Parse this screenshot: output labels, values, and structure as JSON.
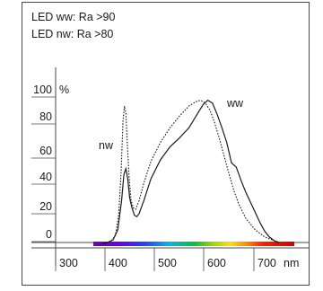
{
  "chart_data": {
    "type": "line",
    "notes": [
      "LED ww: Ra >90",
      "LED nw: Ra >80"
    ],
    "y_unit": "%",
    "x_unit": "nm",
    "xlim": [
      300,
      750
    ],
    "ylim": [
      0,
      100
    ],
    "x_ticks": [
      300,
      400,
      500,
      600,
      700
    ],
    "y_ticks": [
      0,
      20,
      40,
      60,
      80,
      100
    ],
    "series": [
      {
        "name": "ww",
        "style": "solid",
        "color": "#1a1a1a",
        "points": [
          [
            370,
            0
          ],
          [
            380,
            0.5
          ],
          [
            390,
            1.5
          ],
          [
            400,
            3
          ],
          [
            410,
            10
          ],
          [
            418,
            30
          ],
          [
            423,
            48
          ],
          [
            427,
            52
          ],
          [
            431,
            45
          ],
          [
            435,
            32
          ],
          [
            440,
            25
          ],
          [
            445,
            20
          ],
          [
            450,
            19
          ],
          [
            455,
            21
          ],
          [
            465,
            30
          ],
          [
            480,
            45
          ],
          [
            500,
            58
          ],
          [
            520,
            67
          ],
          [
            540,
            73
          ],
          [
            560,
            80
          ],
          [
            575,
            88
          ],
          [
            590,
            96
          ],
          [
            600,
            99
          ],
          [
            610,
            97
          ],
          [
            620,
            89
          ],
          [
            630,
            80
          ],
          [
            640,
            70
          ],
          [
            650,
            56
          ],
          [
            660,
            53
          ],
          [
            670,
            44
          ],
          [
            680,
            36
          ],
          [
            690,
            29
          ],
          [
            700,
            22
          ],
          [
            710,
            15
          ],
          [
            720,
            9
          ],
          [
            730,
            5
          ],
          [
            740,
            2.5
          ],
          [
            750,
            1
          ]
        ]
      },
      {
        "name": "nw",
        "style": "dotted",
        "color": "#1a1a1a",
        "points": [
          [
            380,
            0
          ],
          [
            395,
            2
          ],
          [
            405,
            6
          ],
          [
            412,
            20
          ],
          [
            417,
            50
          ],
          [
            421,
            85
          ],
          [
            424,
            95
          ],
          [
            427,
            90
          ],
          [
            430,
            70
          ],
          [
            434,
            45
          ],
          [
            438,
            30
          ],
          [
            443,
            25
          ],
          [
            448,
            24
          ],
          [
            455,
            30
          ],
          [
            465,
            42
          ],
          [
            480,
            57
          ],
          [
            500,
            70
          ],
          [
            520,
            80
          ],
          [
            540,
            88
          ],
          [
            560,
            95
          ],
          [
            575,
            98
          ],
          [
            585,
            99
          ],
          [
            595,
            97
          ],
          [
            605,
            92
          ],
          [
            615,
            83
          ],
          [
            625,
            72
          ],
          [
            635,
            60
          ],
          [
            645,
            48
          ],
          [
            655,
            37
          ],
          [
            665,
            28
          ],
          [
            680,
            18
          ],
          [
            700,
            10
          ],
          [
            720,
            5
          ],
          [
            740,
            2.5
          ],
          [
            750,
            1.5
          ]
        ]
      }
    ]
  }
}
